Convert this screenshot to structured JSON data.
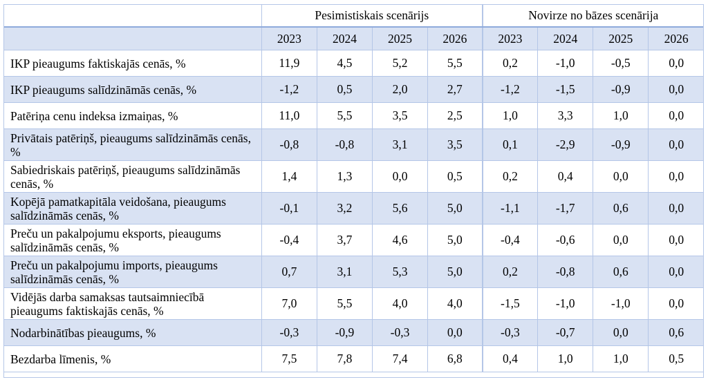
{
  "header": {
    "group_pessimistic": "Pesimistiskais scenārijs",
    "group_deviation": "Novirze no bāzes scenārija",
    "years_pessimistic": [
      "2023",
      "2024",
      "2025",
      "2026"
    ],
    "years_deviation": [
      "2023",
      "2024",
      "2025",
      "2026"
    ]
  },
  "rows": [
    {
      "label": "IKP pieaugums faktiskajās cenās, %",
      "pess": [
        "11,9",
        "4,5",
        "5,2",
        "5,5"
      ],
      "dev": [
        "0,2",
        "-1,0",
        "-0,5",
        "0,0"
      ]
    },
    {
      "label": "IKP pieaugums salīdzināmās cenās, %",
      "pess": [
        "-1,2",
        "0,5",
        "2,0",
        "2,7"
      ],
      "dev": [
        "-1,2",
        "-1,5",
        "-0,9",
        "0,0"
      ]
    },
    {
      "label": "Patēriņa cenu indeksa izmaiņas, %",
      "pess": [
        "11,0",
        "5,5",
        "3,5",
        "2,5"
      ],
      "dev": [
        "1,0",
        "3,3",
        "1,0",
        "0,0"
      ]
    },
    {
      "label": "Privātais patēriņš, pieaugums salīdzināmās cenās, %",
      "pess": [
        "-0,8",
        "-0,8",
        "3,1",
        "3,5"
      ],
      "dev": [
        "0,1",
        "-2,9",
        "-0,9",
        "0,0"
      ]
    },
    {
      "label": "Sabiedriskais patēriņš, pieaugums salīdzināmās cenās, %",
      "pess": [
        "1,4",
        "1,3",
        "0,0",
        "0,5"
      ],
      "dev": [
        "0,2",
        "0,4",
        "0,0",
        "0,0"
      ]
    },
    {
      "label": "Kopējā pamatkapitāla veidošana, pieaugums salīdzināmās cenās, %",
      "pess": [
        "-0,1",
        "3,2",
        "5,6",
        "5,0"
      ],
      "dev": [
        "-1,1",
        "-1,7",
        "0,6",
        "0,0"
      ]
    },
    {
      "label": "Preču un pakalpojumu eksports, pieaugums salīdzināmās cenās, %",
      "pess": [
        "-0,4",
        "3,7",
        "4,6",
        "5,0"
      ],
      "dev": [
        "-0,4",
        "-0,6",
        "0,0",
        "0,0"
      ]
    },
    {
      "label": "Preču un pakalpojumu imports, pieaugums salīdzināmās cenās, %",
      "pess": [
        "0,7",
        "3,1",
        "5,3",
        "5,0"
      ],
      "dev": [
        "0,2",
        "-0,8",
        "0,6",
        "0,0"
      ]
    },
    {
      "label": "Vidējās darba samaksas tautsaimniecībā pieaugums faktiskajās cenās, %",
      "pess": [
        "7,0",
        "5,5",
        "4,0",
        "4,0"
      ],
      "dev": [
        "-1,5",
        "-1,0",
        "-1,0",
        "0,0"
      ]
    },
    {
      "label": "Nodarbinātības pieaugums, %",
      "pess": [
        "-0,3",
        "-0,9",
        "-0,3",
        "0,0"
      ],
      "dev": [
        "-0,3",
        "-0,7",
        "0,0",
        "0,6"
      ]
    },
    {
      "label": "Bezdarba līmenis, %",
      "pess": [
        "7,5",
        "7,8",
        "7,4",
        "6,8"
      ],
      "dev": [
        "0,4",
        "1,0",
        "1,0",
        "0,5"
      ]
    }
  ]
}
